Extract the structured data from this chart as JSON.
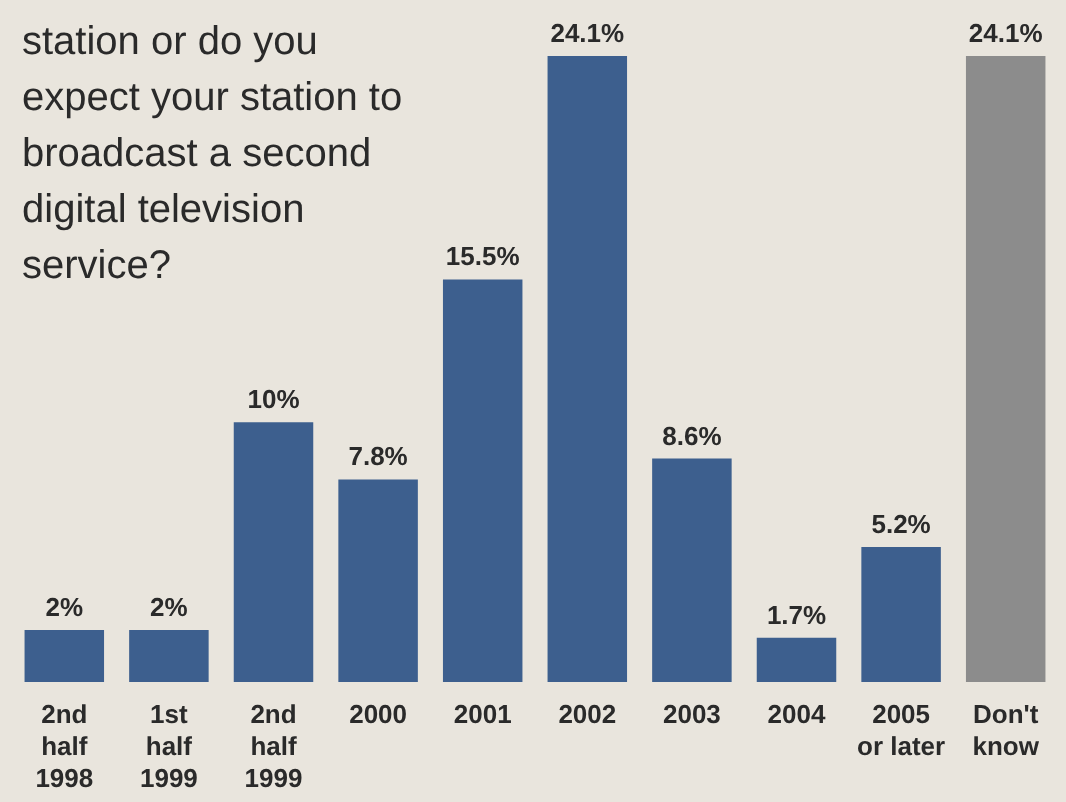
{
  "chart_data": {
    "type": "bar",
    "title": "station or do you expect your station to broadcast a second digital television service?",
    "categories": [
      "2nd\nhalf\n1998",
      "1st\nhalf\n1999",
      "2nd\nhalf\n1999",
      "2000",
      "2001",
      "2002",
      "2003",
      "2004",
      "2005\nor later",
      "Don't\nknow"
    ],
    "values": [
      2,
      2,
      10,
      7.8,
      15.5,
      24.1,
      8.6,
      1.7,
      5.2,
      24.1
    ],
    "value_labels": [
      "2%",
      "2%",
      "10%",
      "7.8%",
      "15.5%",
      "24.1%",
      "8.6%",
      "1.7%",
      "5.2%",
      "24.1%"
    ],
    "colors": [
      "#3d5f8e",
      "#3d5f8e",
      "#3d5f8e",
      "#3d5f8e",
      "#3d5f8e",
      "#3d5f8e",
      "#3d5f8e",
      "#3d5f8e",
      "#3d5f8e",
      "#8c8c8c"
    ]
  }
}
